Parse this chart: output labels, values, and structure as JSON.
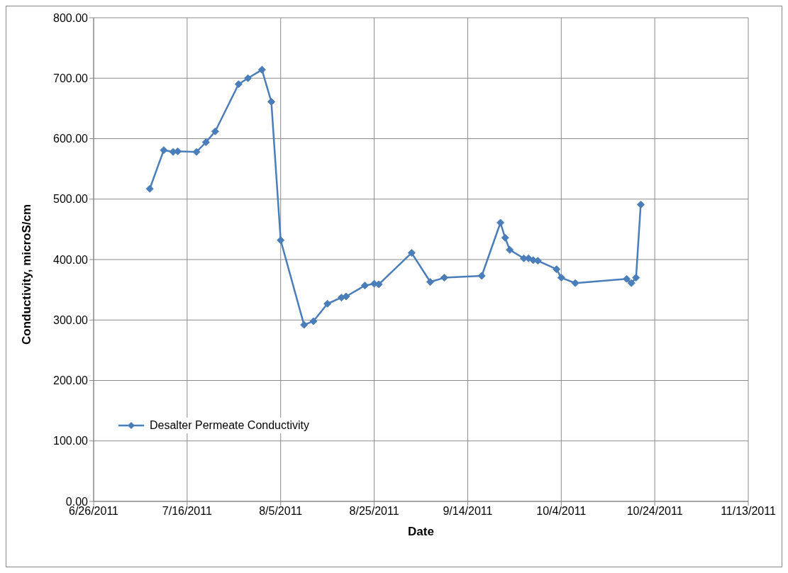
{
  "chart_data": {
    "type": "line",
    "xlabel": "Date",
    "ylabel": "Conductivity, microS/cm",
    "x": [
      "2011-07-08",
      "2011-07-11",
      "2011-07-13",
      "2011-07-14",
      "2011-07-18",
      "2011-07-20",
      "2011-07-22",
      "2011-07-27",
      "2011-07-29",
      "2011-08-01",
      "2011-08-03",
      "2011-08-05",
      "2011-08-10",
      "2011-08-12",
      "2011-08-15",
      "2011-08-18",
      "2011-08-19",
      "2011-08-23",
      "2011-08-25",
      "2011-08-26",
      "2011-09-02",
      "2011-09-06",
      "2011-09-09",
      "2011-09-17",
      "2011-09-21",
      "2011-09-22",
      "2011-09-23",
      "2011-09-26",
      "2011-09-27",
      "2011-09-28",
      "2011-09-29",
      "2011-10-03",
      "2011-10-04",
      "2011-10-07",
      "2011-10-18",
      "2011-10-19",
      "2011-10-20",
      "2011-10-21"
    ],
    "series": [
      {
        "name": "Desalter Permeate Conductivity",
        "color": "#4a7ebb",
        "values": [
          517,
          581,
          578,
          579,
          578,
          594,
          612,
          690,
          700,
          714,
          661,
          432,
          292,
          298,
          327,
          337,
          339,
          357,
          360,
          359,
          411,
          363,
          370,
          373,
          461,
          436,
          416,
          402,
          402,
          399,
          398,
          384,
          370,
          361,
          368,
          361,
          370,
          491
        ]
      }
    ],
    "xlim": [
      "2011-06-26",
      "2011-11-13"
    ],
    "xticks": [
      {
        "value": "2011-06-26",
        "label": "6/26/2011"
      },
      {
        "value": "2011-07-16",
        "label": "7/16/2011"
      },
      {
        "value": "2011-08-05",
        "label": "8/5/2011"
      },
      {
        "value": "2011-08-25",
        "label": "8/25/2011"
      },
      {
        "value": "2011-09-14",
        "label": "9/14/2011"
      },
      {
        "value": "2011-10-04",
        "label": "10/4/2011"
      },
      {
        "value": "2011-10-24",
        "label": "10/24/2011"
      },
      {
        "value": "2011-11-13",
        "label": "11/13/2011"
      }
    ],
    "ylim": [
      0,
      800
    ],
    "yticks": [
      {
        "value": 0,
        "label": "0.00"
      },
      {
        "value": 100,
        "label": "100.00"
      },
      {
        "value": 200,
        "label": "200.00"
      },
      {
        "value": 300,
        "label": "300.00"
      },
      {
        "value": 400,
        "label": "400.00"
      },
      {
        "value": 500,
        "label": "500.00"
      },
      {
        "value": 600,
        "label": "600.00"
      },
      {
        "value": 700,
        "label": "700.00"
      },
      {
        "value": 800,
        "label": "800.00"
      }
    ],
    "grid": true,
    "legend": "bottom left",
    "marker": "diamond",
    "line_style": "solid"
  }
}
